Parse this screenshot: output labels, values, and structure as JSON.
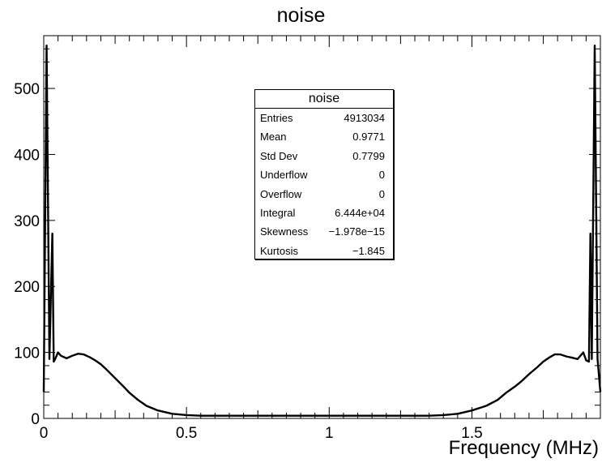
{
  "chart_data": {
    "type": "histogram",
    "title": "noise",
    "xlabel": "Frequency (MHz)",
    "ylabel": "",
    "xlim": [
      0,
      1.95
    ],
    "ylim": [
      0,
      580
    ],
    "x_ticks": [
      0,
      0.5,
      1,
      1.5
    ],
    "x_tick_labels": [
      "0",
      "0.5",
      "1",
      "1.5"
    ],
    "y_ticks": [
      0,
      100,
      200,
      300,
      400,
      500
    ],
    "y_tick_labels": [
      "0",
      "100",
      "200",
      "300",
      "400",
      "500"
    ],
    "grid": false,
    "line_color": "#000000",
    "series": [
      {
        "x": [
          0,
          0.01,
          0.02,
          0.03,
          0.035,
          0.04,
          0.05,
          0.06,
          0.08,
          0.1,
          0.12,
          0.14,
          0.16,
          0.18,
          0.2,
          0.22,
          0.25,
          0.28,
          0.3,
          0.33,
          0.36,
          0.4,
          0.45,
          0.5,
          0.55,
          0.6,
          0.7,
          0.8,
          0.9,
          1.0,
          1.1,
          1.2,
          1.3,
          1.35,
          1.4,
          1.45,
          1.5,
          1.55,
          1.59,
          1.62,
          1.65,
          1.67,
          1.7,
          1.73,
          1.75,
          1.77,
          1.79,
          1.81,
          1.83,
          1.85,
          1.87,
          1.89,
          1.9,
          1.91,
          1.915,
          1.92,
          1.93,
          1.94,
          1.95
        ],
        "y": [
          40,
          565,
          90,
          280,
          86,
          90,
          100,
          95,
          91,
          95,
          98,
          97,
          93,
          88,
          82,
          74,
          61,
          48,
          39,
          28,
          19,
          12,
          7,
          5,
          4,
          4,
          4,
          4,
          4,
          4,
          4,
          4,
          4,
          4,
          5,
          7,
          12,
          19,
          28,
          39,
          48,
          55,
          67,
          78,
          86,
          92,
          97,
          97,
          94,
          92,
          90,
          100,
          88,
          86,
          280,
          90,
          565,
          90,
          40
        ]
      }
    ]
  },
  "stats_box": {
    "title": "noise",
    "rows": [
      {
        "label": "Entries",
        "value": "4913034"
      },
      {
        "label": "Mean",
        "value": "0.9771"
      },
      {
        "label": "Std Dev",
        "value": "0.7799"
      },
      {
        "label": "Underflow",
        "value": "0"
      },
      {
        "label": "Overflow",
        "value": "0"
      },
      {
        "label": "Integral",
        "value": "6.444e+04"
      },
      {
        "label": "Skewness",
        "value": "−1.978e−15"
      },
      {
        "label": "Kurtosis",
        "value": "−1.845"
      }
    ]
  }
}
